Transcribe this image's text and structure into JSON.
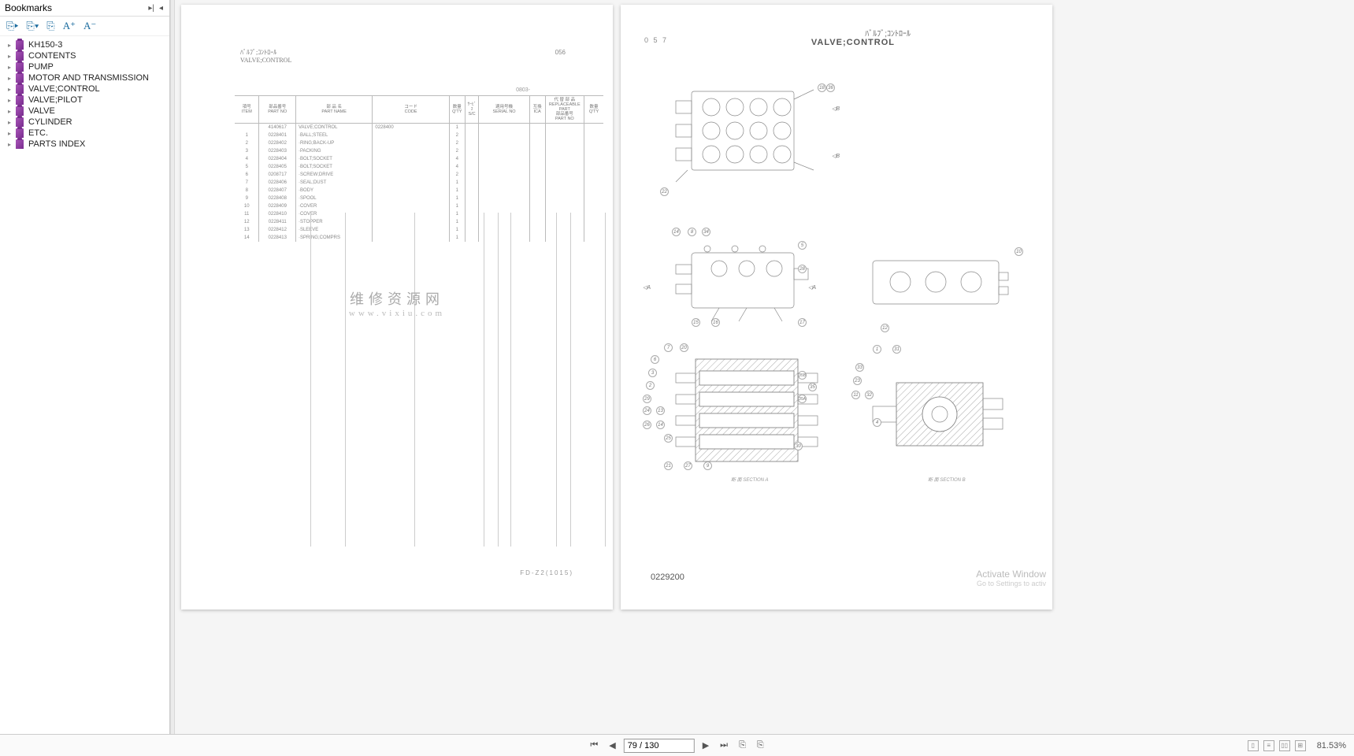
{
  "sidebar": {
    "title": "Bookmarks",
    "toolbar": {
      "expand": "⊞",
      "collapse": "⊟",
      "new": "✎",
      "ap": "A⁺",
      "am": "A⁻"
    },
    "items": [
      {
        "label": "KH150-3"
      },
      {
        "label": "CONTENTS"
      },
      {
        "label": "PUMP"
      },
      {
        "label": "MOTOR AND TRANSMISSION"
      },
      {
        "label": "VALVE;CONTROL"
      },
      {
        "label": "VALVE;PILOT"
      },
      {
        "label": "VALVE"
      },
      {
        "label": "CYLINDER"
      },
      {
        "label": "ETC."
      },
      {
        "label": "PARTS INDEX"
      }
    ]
  },
  "leftPage": {
    "headerJp": "ﾊﾞﾙﾌﾞ;ｺﾝﾄﾛｰﾙ",
    "headerEn": "VALVE;CONTROL",
    "pageNo": "056",
    "subNo": "0803-",
    "footer": "FD-Z2(1015)",
    "watermarkCn": "维修资源网",
    "watermarkUrl": "www.vixiu.com",
    "columns": [
      "項号\nITEM",
      "部品番号\nPART NO",
      "部 品 名\nPART NAME",
      "コード\nCODE",
      "数量\nQ'TY",
      "ｻｰﾋﾞｽ\nS/C",
      "適用号機\nSERIAL NO",
      "互換\nICA",
      "代 替 部 品\nREPLACEABLE PART\n部品番号\nPART NO",
      "数量\nQ'TY"
    ],
    "rows": [
      {
        "item": "",
        "part": "4140617",
        "name": "VALVE;CONTROL",
        "code": "0228400",
        "qty": "1"
      },
      {
        "item": "1",
        "part": "0228401",
        "name": "·BALL;STEEL",
        "code": "",
        "qty": "2"
      },
      {
        "item": "2",
        "part": "0228402",
        "name": "·RING;BACK-UP",
        "code": "",
        "qty": "2"
      },
      {
        "item": "3",
        "part": "0228403",
        "name": "·PACKING",
        "code": "",
        "qty": "2"
      },
      {
        "item": "4",
        "part": "0228404",
        "name": "·BOLT;SOCKET",
        "code": "",
        "qty": "4"
      },
      {
        "item": "5",
        "part": "0228405",
        "name": "·BOLT;SOCKET",
        "code": "",
        "qty": "4"
      },
      {
        "item": "6",
        "part": "0208717",
        "name": "·SCREW;DRIVE",
        "code": "",
        "qty": "2"
      },
      {
        "item": "7",
        "part": "0228406",
        "name": "·SEAL;DUST",
        "code": "",
        "qty": "1"
      },
      {
        "item": "8",
        "part": "0228407",
        "name": "·BODY",
        "code": "",
        "qty": "1"
      },
      {
        "item": "9",
        "part": "0228408",
        "name": "·SPOOL",
        "code": "",
        "qty": "1"
      },
      {
        "item": "10",
        "part": "0228409",
        "name": "·COVER",
        "code": "",
        "qty": "1"
      },
      {
        "item": "11",
        "part": "0228410",
        "name": "·COVER",
        "code": "",
        "qty": "1"
      },
      {
        "item": "12",
        "part": "0228411",
        "name": "·STOPPER",
        "code": "",
        "qty": "1"
      },
      {
        "item": "13",
        "part": "0228412",
        "name": "·SLEEVE",
        "code": "",
        "qty": "1"
      },
      {
        "item": "14",
        "part": "0228413",
        "name": "·SPRING;COMPRS",
        "code": "",
        "qty": "1"
      }
    ]
  },
  "rightPage": {
    "pageNo": "0 5 7",
    "titleJp": "ﾊﾞﾙﾌﾞ;ｺﾝﾄﾛｰﾙ",
    "titleEn": "VALVE;CONTROL",
    "partNo": "0229200",
    "wm1": "Activate Window",
    "wm2": "Go to Settings to activ",
    "sectionA": "断 面\nSECTION A",
    "sectionB": "断 面\nSECTION B",
    "callouts_top": [
      "18",
      "36",
      "22"
    ],
    "callouts_mid_left": [
      "14",
      "8",
      "34",
      "5",
      "28",
      "15",
      "16",
      "17"
    ],
    "callouts_mid_right": [
      "10",
      "12"
    ],
    "callouts_bot_left": [
      "7",
      "20",
      "6",
      "3",
      "2",
      "29",
      "24",
      "13",
      "26",
      "14",
      "25",
      "21",
      "27",
      "9",
      "35B",
      "35",
      "35A",
      "30"
    ],
    "callouts_bot_right": [
      "1",
      "31",
      "33",
      "23",
      "11",
      "32",
      "4"
    ]
  },
  "footer": {
    "page": "79 / 130",
    "zoom": "81.53%"
  },
  "colors": {
    "border": "#bbb",
    "text": "#777",
    "icon": "#1a6b9e",
    "bookmark": "#7a2d8f",
    "pagebg": "#fff",
    "appbg": "#f5f5f5"
  }
}
